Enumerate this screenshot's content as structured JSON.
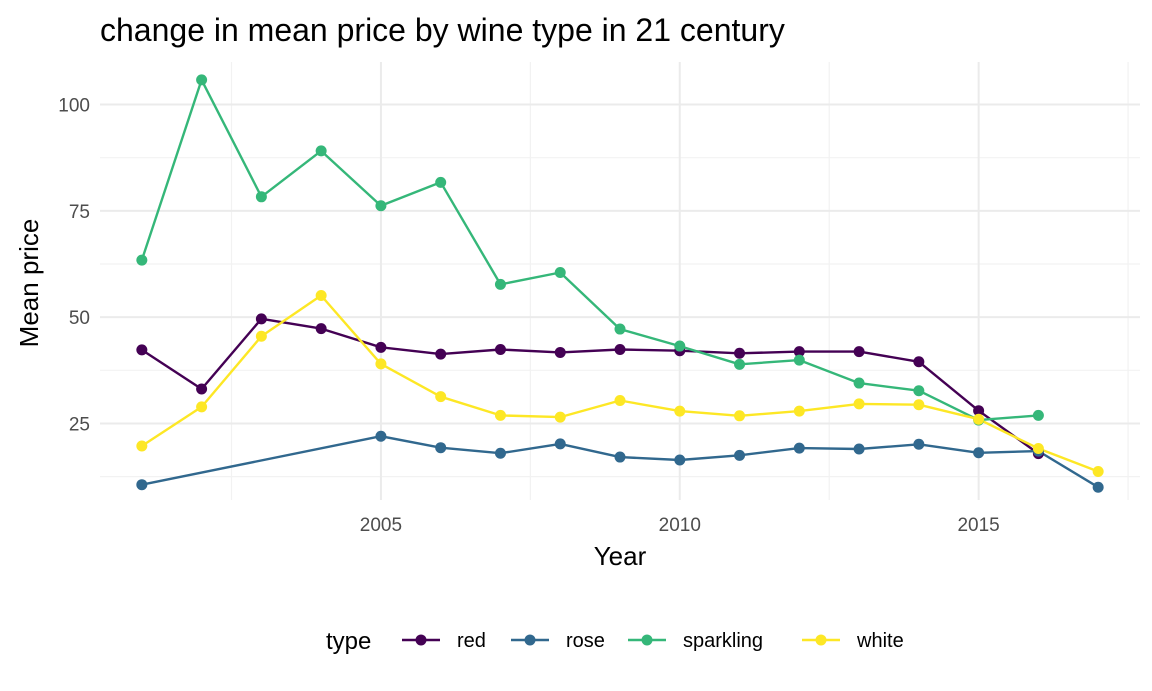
{
  "chart_data": {
    "type": "line",
    "title": "change in mean price by wine type in 21 century",
    "xlabel": "Year",
    "ylabel": "Mean price",
    "xlim": [
      2000.3,
      2017.7
    ],
    "ylim": [
      7,
      110
    ],
    "x_ticks": [
      2005,
      2010,
      2015
    ],
    "y_ticks": [
      25,
      50,
      75,
      100
    ],
    "grid": true,
    "legend": {
      "title": "type",
      "position": "bottom",
      "entries": [
        "red",
        "rose",
        "sparkling",
        "white"
      ]
    },
    "series": [
      {
        "name": "red",
        "color": "#440154",
        "x": [
          2001,
          2002,
          2003,
          2004,
          2005,
          2006,
          2007,
          2008,
          2009,
          2010,
          2011,
          2012,
          2013,
          2014,
          2015,
          2016
        ],
        "y": [
          42.3,
          33.1,
          49.6,
          47.3,
          42.9,
          41.3,
          42.4,
          41.7,
          42.4,
          42.1,
          41.5,
          41.9,
          41.9,
          39.5,
          28.0,
          17.9
        ]
      },
      {
        "name": "rose",
        "color": "#31688E",
        "x": [
          2001,
          2005,
          2006,
          2007,
          2008,
          2009,
          2010,
          2011,
          2012,
          2013,
          2014,
          2015,
          2016,
          2017
        ],
        "y": [
          10.6,
          22.0,
          19.3,
          18.0,
          20.2,
          17.1,
          16.4,
          17.5,
          19.2,
          19.0,
          20.1,
          18.1,
          18.5,
          10.0
        ]
      },
      {
        "name": "sparkling",
        "color": "#35B779",
        "x": [
          2001,
          2002,
          2003,
          2004,
          2005,
          2006,
          2007,
          2008,
          2009,
          2010,
          2011,
          2012,
          2013,
          2014,
          2015,
          2016
        ],
        "y": [
          63.4,
          105.8,
          78.3,
          89.1,
          76.2,
          81.7,
          57.7,
          60.5,
          47.2,
          43.2,
          38.9,
          39.9,
          34.5,
          32.7,
          25.8,
          26.9
        ]
      },
      {
        "name": "white",
        "color": "#FDE725",
        "x": [
          2001,
          2002,
          2003,
          2004,
          2005,
          2006,
          2007,
          2008,
          2009,
          2010,
          2011,
          2012,
          2013,
          2014,
          2015,
          2016,
          2017
        ],
        "y": [
          19.7,
          28.9,
          45.5,
          55.1,
          39.0,
          31.3,
          26.9,
          26.5,
          30.4,
          27.9,
          26.8,
          27.9,
          29.6,
          29.4,
          26.0,
          19.1,
          13.7
        ]
      }
    ]
  }
}
